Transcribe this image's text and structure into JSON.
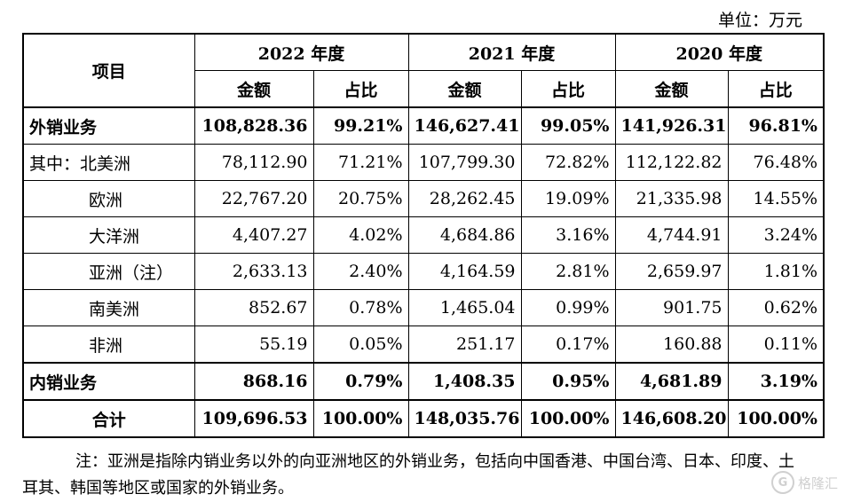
{
  "unit": "单位：万元",
  "header": {
    "item": "项目",
    "years": [
      {
        "num": "2022",
        "cn": "年度"
      },
      {
        "num": "2021",
        "cn": "年度"
      },
      {
        "num": "2020",
        "cn": "年度"
      }
    ],
    "amount": "金额",
    "ratio": "占比"
  },
  "rows": [
    {
      "label": "外销业务",
      "v": [
        "108,828.36",
        "99.21%",
        "146,627.41",
        "99.05%",
        "141,926.31",
        "96.81%"
      ]
    },
    {
      "label": "其中：北美洲",
      "v": [
        "78,112.90",
        "71.21%",
        "107,799.30",
        "72.82%",
        "112,122.82",
        "76.48%"
      ]
    },
    {
      "label": "欧洲",
      "v": [
        "22,767.20",
        "20.75%",
        "28,262.45",
        "19.09%",
        "21,335.98",
        "14.55%"
      ]
    },
    {
      "label": "大洋洲",
      "v": [
        "4,407.27",
        "4.02%",
        "4,684.86",
        "3.16%",
        "4,744.91",
        "3.24%"
      ]
    },
    {
      "label": "亚洲（注）",
      "v": [
        "2,633.13",
        "2.40%",
        "4,164.59",
        "2.81%",
        "2,659.97",
        "1.81%"
      ]
    },
    {
      "label": "南美洲",
      "v": [
        "852.67",
        "0.78%",
        "1,465.04",
        "0.99%",
        "901.75",
        "0.62%"
      ]
    },
    {
      "label": "非洲",
      "v": [
        "55.19",
        "0.05%",
        "251.17",
        "0.17%",
        "160.88",
        "0.11%"
      ]
    },
    {
      "label": "内销业务",
      "v": [
        "868.16",
        "0.79%",
        "1,408.35",
        "0.95%",
        "4,681.89",
        "3.19%"
      ]
    },
    {
      "label": "合计",
      "v": [
        "109,696.53",
        "100.00%",
        "148,035.76",
        "100.00%",
        "146,608.20",
        "100.00%"
      ]
    }
  ],
  "note": "注：亚洲是指除内销业务以外的向亚洲地区的外销业务，包括向中国香港、中国台湾、日本、印度、土耳其、韩国等地区或国家的外销业务。",
  "watermark": "格隆汇"
}
